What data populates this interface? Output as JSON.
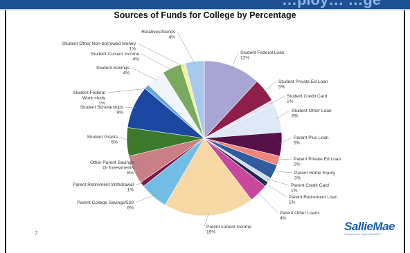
{
  "header": {
    "band_text": "…ploy… …ge"
  },
  "page_number": "7",
  "logo": {
    "name": "SallieMae",
    "tagline": "Champions for Higher Education℠"
  },
  "chart_data": {
    "type": "pie",
    "title": "Sources of Funds for College by Percentage",
    "start_angle_deg": 0,
    "direction": "clockwise",
    "slices": [
      {
        "label": [
          "Student Federal Loan"
        ],
        "value": 12,
        "display": "12%",
        "color": "#a8a4d4"
      },
      {
        "label": [
          "Student Private Ed Loan"
        ],
        "value": 5,
        "display": "5%",
        "color": "#8e1f4a"
      },
      {
        "label": [
          "Student Credit Card"
        ],
        "value": 1,
        "display": "1%",
        "color": "#e6e2f2"
      },
      {
        "label": [
          "Student Other Loan"
        ],
        "value": 6,
        "display": "6%",
        "color": "#dde9f6"
      },
      {
        "label": [
          "Parent Plus Loan"
        ],
        "value": 5,
        "display": "5%",
        "color": "#56114a"
      },
      {
        "label": [
          "Parent Private Ed Loan"
        ],
        "value": 2,
        "display": "2%",
        "color": "#f0837a"
      },
      {
        "label": [
          "Parent Home Equity"
        ],
        "value": 3,
        "display": "3%",
        "color": "#2f5c9c"
      },
      {
        "label": [
          "Parent Credit Card"
        ],
        "value": 1,
        "display": "1%",
        "color": "#d0dcec"
      },
      {
        "label": [
          "Parent Retirement Loan"
        ],
        "value": 1,
        "display": "1%",
        "color": "#1a2a4a"
      },
      {
        "label": [
          "Parent Other Loans"
        ],
        "value": 4,
        "display": "4%",
        "color": "#c9479d"
      },
      {
        "label": [
          "Parent current income"
        ],
        "value": 19,
        "display": "19%",
        "color": "#f6d8a4"
      },
      {
        "label": [
          "Parent College Savings/529"
        ],
        "value": 6,
        "display": "6%",
        "color": "#72bde4"
      },
      {
        "label": [
          "Parent Retirement Withdrawal"
        ],
        "value": 1,
        "display": "1%",
        "color": "#7a1848"
      },
      {
        "label": [
          "Other Parent Savings",
          "Or Investments"
        ],
        "value": 6,
        "display": "6%",
        "color": "#c97f86"
      },
      {
        "label": [
          "Student Grants"
        ],
        "value": 6,
        "display": "6%",
        "color": "#3a7a2a"
      },
      {
        "label": [
          "Student Scholarships"
        ],
        "value": 9,
        "display": "9%",
        "color": "#1a48a0"
      },
      {
        "label": [
          "Student Federal",
          "Work-study"
        ],
        "value": 1,
        "display": "1%",
        "color": "#6aa6d6"
      },
      {
        "label": [
          "Student Savings"
        ],
        "value": 4,
        "display": "4%",
        "color": "#f0f4fb"
      },
      {
        "label": [
          "Student Current Income"
        ],
        "value": 4,
        "display": "4%",
        "color": "#7aaa5e"
      },
      {
        "label": [
          "Student Other Non-borrowed Money"
        ],
        "value": 1,
        "display": "1%",
        "color": "#f4f0a0"
      },
      {
        "label": [
          "Relatives/friends"
        ],
        "value": 4,
        "display": "4%",
        "color": "#a6c8ee"
      }
    ]
  }
}
